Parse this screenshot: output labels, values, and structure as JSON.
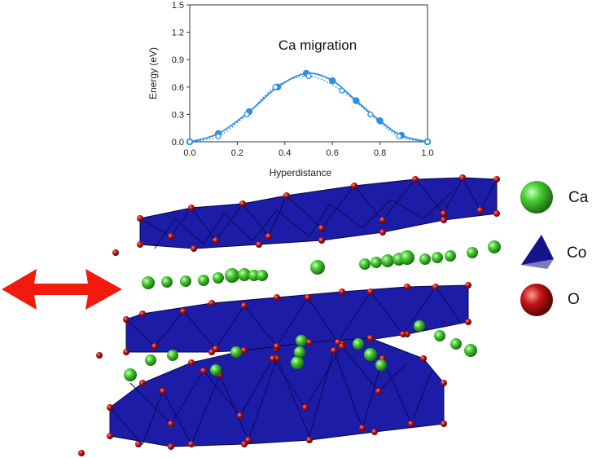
{
  "chart_data": {
    "type": "line",
    "title": "Ca migration",
    "xlabel": "Hyperdistance",
    "ylabel": "Energy (eV)",
    "xlim": [
      0.0,
      1.0
    ],
    "ylim": [
      0.0,
      1.5
    ],
    "xticks": [
      "0.0",
      "0.2",
      "0.4",
      "0.6",
      "0.8",
      "1.0"
    ],
    "yticks": [
      "0.0",
      "0.3",
      "0.6",
      "0.9",
      "1.2",
      "1.5"
    ],
    "grid": false,
    "series": [
      {
        "style": "solid-filled",
        "color": "#2f8fe0",
        "x": [
          0.0,
          0.12,
          0.25,
          0.37,
          0.49,
          0.6,
          0.7,
          0.8,
          0.89,
          1.0
        ],
        "y": [
          0.0,
          0.09,
          0.33,
          0.6,
          0.75,
          0.67,
          0.45,
          0.23,
          0.07,
          0.0
        ]
      },
      {
        "style": "dotted-open",
        "color": "#2f8fe0",
        "x": [
          0.0,
          0.12,
          0.24,
          0.36,
          0.5,
          0.64,
          0.76,
          0.88,
          1.0
        ],
        "y": [
          0.0,
          0.06,
          0.3,
          0.6,
          0.72,
          0.56,
          0.3,
          0.06,
          0.0
        ]
      }
    ]
  },
  "legend": {
    "ca": {
      "label": "Ca",
      "color": "#3fbf2f"
    },
    "co": {
      "label": "Co",
      "color": "#1a1aa8"
    },
    "o": {
      "label": "O",
      "color": "#b01010"
    }
  },
  "colors": {
    "polyhedra": "#1c1ca6",
    "arrow": "#f21a0c"
  },
  "icons": [
    "double-arrow-icon",
    "ca-sphere-icon",
    "co-tetrahedron-icon",
    "o-sphere-icon"
  ]
}
